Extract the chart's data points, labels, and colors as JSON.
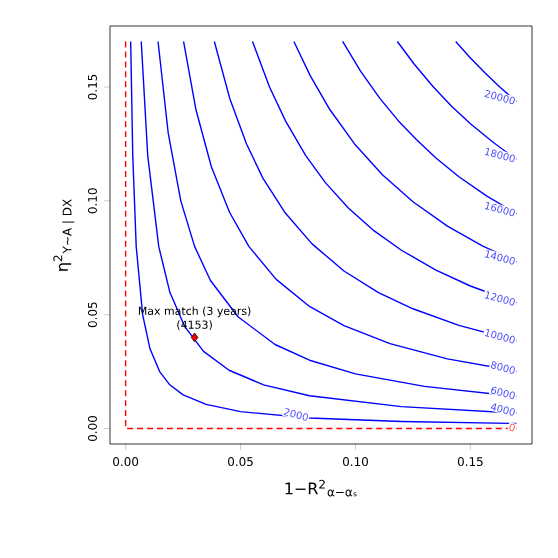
{
  "chart_data": {
    "type": "line",
    "xlabel": "1−R$^{2}$$_{α−αₛ}$",
    "ylabel": "η$^{2}$$_{Y∼A | DX}$",
    "xlim": [
      -0.0068,
      0.1768
    ],
    "ylim": [
      -0.0068,
      0.1768
    ],
    "xticks": [
      {
        "value": 0,
        "label": "0.00"
      },
      {
        "value": 0.05,
        "label": "0.05"
      },
      {
        "value": 0.1,
        "label": "0.10"
      },
      {
        "value": 0.15,
        "label": "0.15"
      }
    ],
    "yticks": [
      {
        "value": 0,
        "label": "0.00"
      },
      {
        "value": 0.05,
        "label": "0.05"
      },
      {
        "value": 0.1,
        "label": "0.10"
      },
      {
        "value": 0.15,
        "label": "0.15"
      }
    ],
    "marker": "none",
    "line_style": "solid",
    "series": [
      {
        "name": "0",
        "color": "#ff0000",
        "line_style": "dashed",
        "x": [
          0,
          0,
          0.17
        ],
        "values": [
          0.17,
          0,
          0
        ]
      },
      {
        "name": "2000",
        "color": "#0000ff",
        "x": [
          0.0022,
          0.0031,
          0.0046,
          0.0074,
          0.0106,
          0.0148,
          0.0192,
          0.025,
          0.035,
          0.05,
          0.08,
          0.12,
          0.17
        ],
        "values": [
          0.17,
          0.12,
          0.08,
          0.05,
          0.035,
          0.025,
          0.0192,
          0.0148,
          0.0106,
          0.0074,
          0.0046,
          0.0031,
          0.0022
        ]
      },
      {
        "name": "4000",
        "color": "#0000ff",
        "x": [
          0.0068,
          0.0096,
          0.0144,
          0.0192,
          0.0256,
          0.0339,
          0.045,
          0.06,
          0.08,
          0.12,
          0.17
        ],
        "values": [
          0.17,
          0.12,
          0.08,
          0.06,
          0.045,
          0.0339,
          0.0256,
          0.0192,
          0.0144,
          0.0096,
          0.0068
        ]
      },
      {
        "name": "6000",
        "color": "#0000ff",
        "x": [
          0.0141,
          0.0185,
          0.024,
          0.03,
          0.0369,
          0.049,
          0.065,
          0.08,
          0.1,
          0.13,
          0.17
        ],
        "values": [
          0.17,
          0.13,
          0.1,
          0.08,
          0.065,
          0.049,
          0.0369,
          0.03,
          0.024,
          0.0185,
          0.0141
        ]
      },
      {
        "name": "8000",
        "color": "#0000ff",
        "x": [
          0.0252,
          0.0306,
          0.0373,
          0.0452,
          0.0536,
          0.0655,
          0.08,
          0.095,
          0.115,
          0.14,
          0.17
        ],
        "values": [
          0.17,
          0.14,
          0.115,
          0.095,
          0.08,
          0.0655,
          0.0536,
          0.0452,
          0.0373,
          0.0306,
          0.0252
        ]
      },
      {
        "name": "10000",
        "color": "#0000ff",
        "x": [
          0.0386,
          0.0453,
          0.0526,
          0.0597,
          0.0692,
          0.0811,
          0.095,
          0.11,
          0.125,
          0.145,
          0.17
        ],
        "values": [
          0.17,
          0.145,
          0.125,
          0.11,
          0.095,
          0.0811,
          0.0692,
          0.0597,
          0.0526,
          0.0453,
          0.0386
        ]
      },
      {
        "name": "12000",
        "color": "#0000ff",
        "x": [
          0.0552,
          0.0626,
          0.0696,
          0.0783,
          0.0869,
          0.0969,
          0.108,
          0.12,
          0.135,
          0.15,
          0.17
        ],
        "values": [
          0.17,
          0.15,
          0.135,
          0.12,
          0.108,
          0.0969,
          0.0869,
          0.0783,
          0.0696,
          0.0626,
          0.0552
        ]
      },
      {
        "name": "14000",
        "color": "#0000ff",
        "x": [
          0.0732,
          0.0803,
          0.0889,
          0.0996,
          0.1116,
          0.125,
          0.14,
          0.155,
          0.17
        ],
        "values": [
          0.17,
          0.155,
          0.14,
          0.125,
          0.1116,
          0.0996,
          0.0889,
          0.0803,
          0.0732
        ]
      },
      {
        "name": "16000",
        "color": "#0000ff",
        "x": [
          0.0944,
          0.1022,
          0.1106,
          0.1188,
          0.1267,
          0.135,
          0.145,
          0.157,
          0.17
        ],
        "values": [
          0.17,
          0.157,
          0.145,
          0.135,
          0.1267,
          0.1188,
          0.1106,
          0.1022,
          0.0944
        ]
      },
      {
        "name": "18000",
        "color": "#0000ff",
        "x": [
          0.1182,
          0.1256,
          0.1339,
          0.1417,
          0.15,
          0.16,
          0.17
        ],
        "values": [
          0.17,
          0.16,
          0.15,
          0.1417,
          0.1339,
          0.1256,
          0.1182
        ]
      },
      {
        "name": "20000",
        "color": "#0000ff",
        "x": [
          0.1436,
          0.1498,
          0.1563,
          0.163,
          0.17
        ],
        "values": [
          0.17,
          0.163,
          0.1563,
          0.1498,
          0.1436
        ]
      },
      {
        "type": "scatter",
        "color": "#ff0000",
        "marker": "diamond",
        "x": [
          0.03
        ],
        "values": [
          0.04
        ]
      }
    ],
    "annotations": [
      {
        "text": "Max match (3 years)",
        "x": 0.03,
        "y": 0.04
      },
      {
        "text": "(4153)",
        "x": 0.03,
        "y": 0.04
      }
    ]
  }
}
